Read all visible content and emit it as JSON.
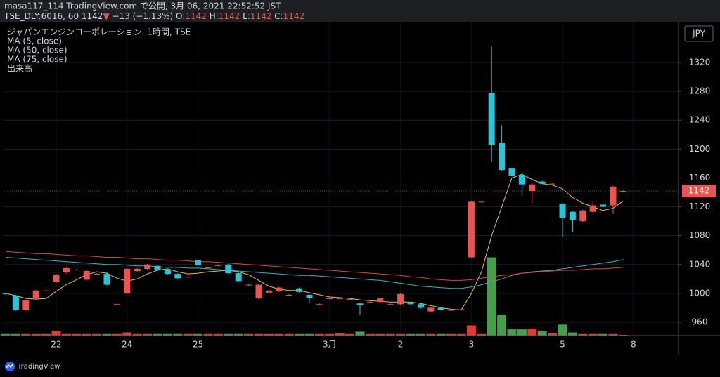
{
  "header": {
    "publisher": "masa117_114 TradingView.com で公開, 3月 06, 2021 22:52:52 JST",
    "symbol": "TSE_DLY:6016, 60",
    "price": "1142",
    "arrow": "▼",
    "change": "−13 (−1.13%)",
    "quote": [
      {
        "label": "O:",
        "value": "1142"
      },
      {
        "label": "H:",
        "value": "1142"
      },
      {
        "label": "L:",
        "value": "1142"
      },
      {
        "label": "C:",
        "value": "1142"
      }
    ]
  },
  "chart_data": {
    "type": "candlestick",
    "title": "ジャパンエンジンコーポレーション, 1時間, TSE",
    "currency": "JPY",
    "categories": [
      null,
      null,
      null,
      null,
      null,
      "22",
      null,
      null,
      null,
      null,
      null,
      null,
      "24",
      null,
      null,
      null,
      null,
      null,
      null,
      "25",
      null,
      null,
      null,
      null,
      null,
      null,
      null,
      null,
      null,
      null,
      null,
      null,
      "3月",
      null,
      null,
      null,
      null,
      null,
      null,
      "2",
      null,
      null,
      null,
      null,
      null,
      null,
      "3",
      null,
      null,
      null,
      null,
      null,
      null,
      null,
      null,
      "5",
      null,
      null,
      null,
      null,
      null,
      null,
      "8"
    ],
    "open": [
      1000,
      997,
      977,
      993,
      1004,
      1016,
      1029,
      1033,
      1019,
      1027,
      1027,
      985,
      1000,
      1031,
      1034,
      1038,
      1033,
      1027,
      1023,
      1046,
      1036,
      1039,
      1040,
      1028,
      1012,
      993,
      1001,
      1003,
      998,
      1007,
      998,
      985,
      993,
      993,
      992,
      986,
      988,
      988,
      985,
      985,
      987,
      985,
      975,
      980,
      977,
      978,
      1050,
      1127,
      1278,
      1209,
      1173,
      1164,
      1142,
      1155,
      1152,
      1124,
      1113,
      1100,
      1113,
      1123,
      1122,
      1142,
      null
    ],
    "high": [
      1001,
      998,
      991,
      1005,
      1005,
      1027,
      1036,
      1034,
      1032,
      1028,
      1030,
      986,
      1035,
      1035,
      1041,
      1039,
      1034,
      1028,
      1024,
      1047,
      1037,
      1040,
      1041,
      1029,
      1013,
      1013,
      1005,
      1009,
      999,
      1008,
      999,
      986,
      994,
      994,
      993,
      987,
      989,
      994,
      986,
      1000,
      988,
      986,
      981,
      981,
      978,
      979,
      1128,
      1128,
      1342,
      1233,
      1174,
      1168,
      1152,
      1156,
      1153,
      1125,
      1114,
      1116,
      1128,
      1130,
      1149,
      1143,
      null
    ],
    "low": [
      998,
      976,
      976,
      992,
      1003,
      1015,
      1028,
      1032,
      1018,
      1026,
      1011,
      984,
      999,
      1030,
      1033,
      1032,
      1026,
      1020,
      1022,
      1038,
      1035,
      1038,
      1027,
      1016,
      1011,
      992,
      1000,
      1002,
      997,
      1001,
      986,
      984,
      992,
      992,
      991,
      970,
      987,
      987,
      984,
      984,
      984,
      979,
      974,
      976,
      976,
      977,
      1049,
      1126,
      1182,
      1170,
      1162,
      1135,
      1125,
      1151,
      1151,
      1078,
      1085,
      1099,
      1112,
      1119,
      1110,
      1141,
      null
    ],
    "close": [
      999,
      977,
      990,
      1004,
      1004,
      1026,
      1035,
      1033,
      1031,
      1027,
      1012,
      985,
      1034,
      1034,
      1040,
      1033,
      1027,
      1021,
      1023,
      1039,
      1036,
      1039,
      1028,
      1017,
      1012,
      1012,
      1004,
      1008,
      998,
      1002,
      994,
      985,
      993,
      993,
      992,
      984,
      988,
      993,
      985,
      999,
      985,
      980,
      980,
      977,
      977,
      978,
      1127,
      1127,
      1206,
      1171,
      1163,
      1151,
      1151,
      1152,
      1152,
      1105,
      1102,
      1115,
      1122,
      1120,
      1148,
      1142,
      null
    ],
    "volume_label": "出来高",
    "volume": [
      2,
      2,
      2,
      2,
      2,
      6,
      2,
      2,
      2,
      2,
      2,
      2,
      4,
      2,
      2,
      2,
      2,
      2,
      2,
      2,
      2,
      2,
      2,
      2,
      2,
      2,
      2,
      2,
      2,
      2,
      2,
      2,
      2,
      3,
      2,
      5,
      2,
      2,
      2,
      2,
      2,
      2,
      2,
      2,
      2,
      2,
      13,
      2,
      100,
      27,
      8,
      8,
      9,
      6,
      3,
      14,
      4,
      2,
      2,
      2,
      2,
      1,
      null
    ],
    "volume_ylim": [
      0,
      400
    ],
    "series": [
      {
        "name": "MA (5, close)",
        "color": "#e3c24a",
        "values": [
          1000,
          997,
          993,
          992,
          993,
          1003,
          1012,
          1019,
          1026,
          1030,
          1028,
          1021,
          1017,
          1020,
          1027,
          1032,
          1034,
          1030,
          1027,
          1028,
          1030,
          1031,
          1032,
          1030,
          1026,
          1018,
          1010,
          1006,
          1004,
          1004,
          1001,
          998,
          995,
          994,
          993,
          991,
          990,
          989,
          988,
          988,
          988,
          986,
          983,
          980,
          978,
          977,
          1000,
          1030,
          1080,
          1120,
          1160,
          1165,
          1158,
          1152,
          1150,
          1145,
          1133,
          1125,
          1120,
          1115,
          1118,
          1128,
          null
        ]
      },
      {
        "name": "MA (50, close)",
        "color": "#2fb5c5",
        "values": [
          1050,
          1049,
          1048,
          1047,
          1046,
          1045,
          1044,
          1043,
          1042,
          1041,
          1040,
          1040,
          1039,
          1038,
          1038,
          1037,
          1036,
          1036,
          1035,
          1035,
          1034,
          1033,
          1032,
          1031,
          1030,
          1029,
          1028,
          1027,
          1026,
          1025,
          1025,
          1024,
          1023,
          1022,
          1021,
          1020,
          1019,
          1018,
          1016,
          1014,
          1012,
          1010,
          1009,
          1008,
          1007,
          1007,
          1009,
          1012,
          1016,
          1020,
          1025,
          1028,
          1030,
          1031,
          1032,
          1034,
          1036,
          1038,
          1040,
          1042,
          1044,
          1047,
          null
        ]
      },
      {
        "name": "MA (75, close)",
        "color": "#e0453c",
        "values": [
          1058,
          1057,
          1056,
          1055,
          1055,
          1054,
          1053,
          1052,
          1052,
          1051,
          1050,
          1050,
          1049,
          1048,
          1048,
          1047,
          1046,
          1046,
          1045,
          1044,
          1044,
          1043,
          1042,
          1041,
          1040,
          1039,
          1038,
          1037,
          1036,
          1035,
          1034,
          1033,
          1032,
          1031,
          1030,
          1029,
          1028,
          1027,
          1026,
          1025,
          1023,
          1022,
          1020,
          1019,
          1018,
          1018,
          1019,
          1021,
          1023,
          1025,
          1026,
          1028,
          1029,
          1030,
          1031,
          1032,
          1032,
          1033,
          1034,
          1034,
          1035,
          1036,
          null
        ]
      }
    ],
    "up_color": "#ef5350",
    "down_color": "#26c6da",
    "volume_up_color": "#e53935",
    "volume_down_color": "#43a047",
    "ylim": [
      941.5,
      1375.5
    ],
    "yticks": [
      960,
      1000,
      1040,
      1080,
      1120,
      1160,
      1200,
      1240,
      1280,
      1320
    ],
    "last_price": 1142,
    "grid": true
  },
  "footer": {
    "brand": "TradingView"
  }
}
